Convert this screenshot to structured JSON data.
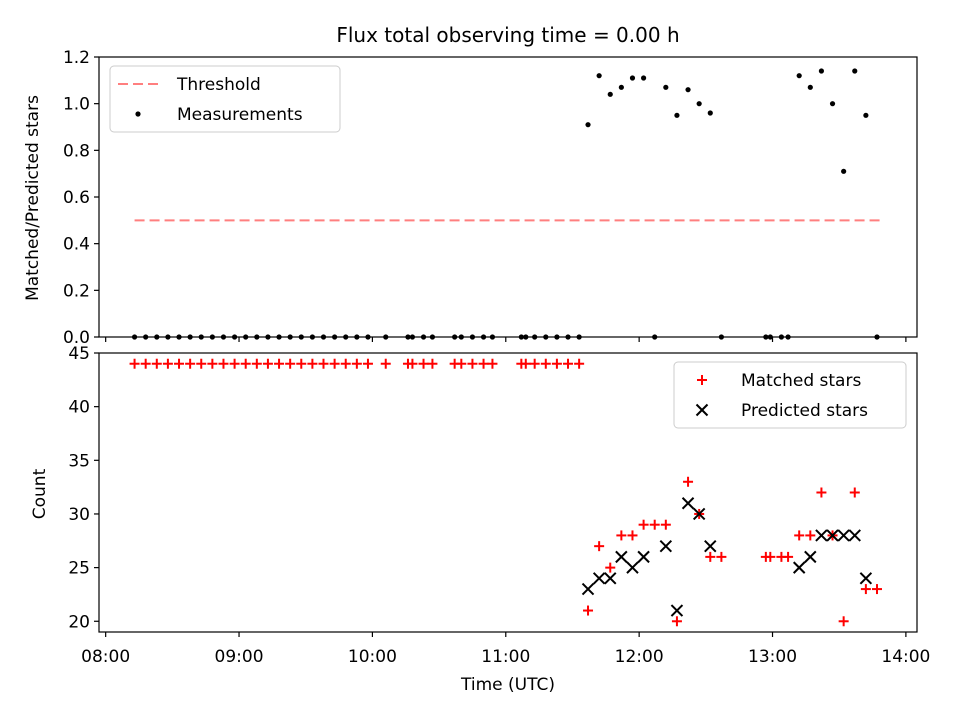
{
  "chart_data": [
    {
      "type": "scatter",
      "title": "Flux total observing time = 0.00 h",
      "xlabel": "",
      "ylabel": "Matched/Predicted stars",
      "xlim": [
        "07:57",
        "14:05"
      ],
      "ylim": [
        0,
        1.2
      ],
      "yticks": [
        "0.0",
        "0.2",
        "0.4",
        "0.6",
        "0.8",
        "1.0",
        "1.2"
      ],
      "grid": false,
      "legend_position": "top-left",
      "series": [
        {
          "name": "Threshold",
          "style": "dashed-line",
          "color": "#ff7f7f",
          "points": [
            [
              "08:13",
              0.5
            ],
            [
              "13:49",
              0.5
            ]
          ]
        },
        {
          "name": "Measurements",
          "style": "dot",
          "color": "#000000",
          "points": [
            [
              "08:13",
              0
            ],
            [
              "08:18",
              0
            ],
            [
              "08:23",
              0
            ],
            [
              "08:28",
              0
            ],
            [
              "08:33",
              0
            ],
            [
              "08:38",
              0
            ],
            [
              "08:43",
              0
            ],
            [
              "08:48",
              0
            ],
            [
              "08:53",
              0
            ],
            [
              "08:58",
              0
            ],
            [
              "09:03",
              0
            ],
            [
              "09:08",
              0
            ],
            [
              "09:13",
              0
            ],
            [
              "09:18",
              0
            ],
            [
              "09:23",
              0
            ],
            [
              "09:28",
              0
            ],
            [
              "09:33",
              0
            ],
            [
              "09:38",
              0
            ],
            [
              "09:43",
              0
            ],
            [
              "09:48",
              0
            ],
            [
              "09:53",
              0
            ],
            [
              "09:58",
              0
            ],
            [
              "10:06",
              0
            ],
            [
              "10:16",
              0
            ],
            [
              "10:18",
              0
            ],
            [
              "10:23",
              0
            ],
            [
              "10:27",
              0
            ],
            [
              "10:37",
              0
            ],
            [
              "10:40",
              0
            ],
            [
              "10:45",
              0
            ],
            [
              "10:50",
              0
            ],
            [
              "10:54",
              0
            ],
            [
              "11:07",
              0
            ],
            [
              "11:09",
              0
            ],
            [
              "11:13",
              0
            ],
            [
              "11:18",
              0
            ],
            [
              "11:23",
              0
            ],
            [
              "11:28",
              0
            ],
            [
              "11:33",
              0
            ],
            [
              "11:37",
              0.91
            ],
            [
              "11:42",
              1.12
            ],
            [
              "11:47",
              1.04
            ],
            [
              "11:52",
              1.07
            ],
            [
              "11:57",
              1.11
            ],
            [
              "12:02",
              1.11
            ],
            [
              "12:07",
              0
            ],
            [
              "12:12",
              1.07
            ],
            [
              "12:17",
              0.95
            ],
            [
              "12:22",
              1.06
            ],
            [
              "12:27",
              1.0
            ],
            [
              "12:32",
              0.96
            ],
            [
              "12:37",
              0
            ],
            [
              "12:57",
              0
            ],
            [
              "12:59",
              0
            ],
            [
              "13:04",
              0
            ],
            [
              "13:07",
              0
            ],
            [
              "13:12",
              1.12
            ],
            [
              "13:17",
              1.07
            ],
            [
              "13:22",
              1.14
            ],
            [
              "13:27",
              1.0
            ],
            [
              "13:32",
              0.71
            ],
            [
              "13:37",
              1.14
            ],
            [
              "13:42",
              0.95
            ],
            [
              "13:47",
              0
            ]
          ]
        }
      ]
    },
    {
      "type": "scatter",
      "title": "",
      "xlabel": "Time (UTC)",
      "ylabel": "Count",
      "xlim": [
        "07:57",
        "14:05"
      ],
      "ylim": [
        19,
        45
      ],
      "yticks": [
        "20",
        "25",
        "30",
        "35",
        "40",
        "45"
      ],
      "xticks": [
        "08:00",
        "09:00",
        "10:00",
        "11:00",
        "12:00",
        "13:00",
        "14:00"
      ],
      "grid": false,
      "legend_position": "top-right",
      "series": [
        {
          "name": "Matched stars",
          "style": "plus",
          "color": "#ff0000",
          "points": [
            [
              "08:13",
              44
            ],
            [
              "08:18",
              44
            ],
            [
              "08:23",
              44
            ],
            [
              "08:28",
              44
            ],
            [
              "08:33",
              44
            ],
            [
              "08:38",
              44
            ],
            [
              "08:43",
              44
            ],
            [
              "08:48",
              44
            ],
            [
              "08:53",
              44
            ],
            [
              "08:58",
              44
            ],
            [
              "09:03",
              44
            ],
            [
              "09:08",
              44
            ],
            [
              "09:13",
              44
            ],
            [
              "09:18",
              44
            ],
            [
              "09:23",
              44
            ],
            [
              "09:28",
              44
            ],
            [
              "09:33",
              44
            ],
            [
              "09:38",
              44
            ],
            [
              "09:43",
              44
            ],
            [
              "09:48",
              44
            ],
            [
              "09:53",
              44
            ],
            [
              "09:58",
              44
            ],
            [
              "10:06",
              44
            ],
            [
              "10:16",
              44
            ],
            [
              "10:18",
              44
            ],
            [
              "10:23",
              44
            ],
            [
              "10:27",
              44
            ],
            [
              "10:37",
              44
            ],
            [
              "10:40",
              44
            ],
            [
              "10:45",
              44
            ],
            [
              "10:50",
              44
            ],
            [
              "10:54",
              44
            ],
            [
              "11:07",
              44
            ],
            [
              "11:09",
              44
            ],
            [
              "11:13",
              44
            ],
            [
              "11:18",
              44
            ],
            [
              "11:23",
              44
            ],
            [
              "11:28",
              44
            ],
            [
              "11:33",
              44
            ],
            [
              "11:37",
              21
            ],
            [
              "11:42",
              27
            ],
            [
              "11:47",
              25
            ],
            [
              "11:52",
              28
            ],
            [
              "11:57",
              28
            ],
            [
              "12:02",
              29
            ],
            [
              "12:07",
              29
            ],
            [
              "12:12",
              29
            ],
            [
              "12:17",
              20
            ],
            [
              "12:22",
              33
            ],
            [
              "12:27",
              30
            ],
            [
              "12:32",
              26
            ],
            [
              "12:37",
              26
            ],
            [
              "12:57",
              26
            ],
            [
              "12:59",
              26
            ],
            [
              "13:04",
              26
            ],
            [
              "13:07",
              26
            ],
            [
              "13:12",
              28
            ],
            [
              "13:17",
              28
            ],
            [
              "13:22",
              32
            ],
            [
              "13:27",
              28
            ],
            [
              "13:32",
              20
            ],
            [
              "13:37",
              32
            ],
            [
              "13:42",
              23
            ],
            [
              "13:47",
              23
            ]
          ]
        },
        {
          "name": "Predicted stars",
          "style": "x",
          "color": "#000000",
          "points": [
            [
              "11:37",
              23
            ],
            [
              "11:42",
              24
            ],
            [
              "11:47",
              24
            ],
            [
              "11:52",
              26
            ],
            [
              "11:57",
              25
            ],
            [
              "12:02",
              26
            ],
            [
              "12:12",
              27
            ],
            [
              "12:17",
              21
            ],
            [
              "12:22",
              31
            ],
            [
              "12:27",
              30
            ],
            [
              "12:32",
              27
            ],
            [
              "13:12",
              25
            ],
            [
              "13:17",
              26
            ],
            [
              "13:22",
              28
            ],
            [
              "13:27",
              28
            ],
            [
              "13:32",
              28
            ],
            [
              "13:37",
              28
            ],
            [
              "13:42",
              24
            ]
          ]
        }
      ]
    }
  ]
}
